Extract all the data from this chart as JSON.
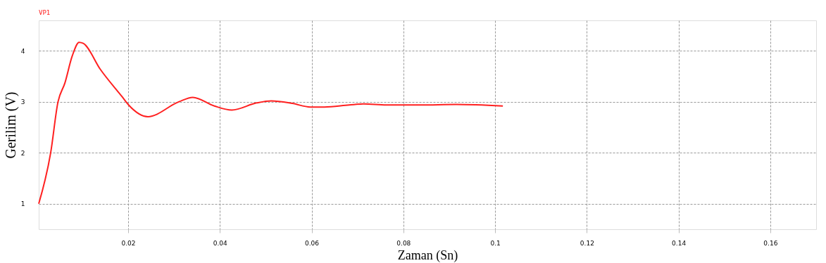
{
  "chart_data": {
    "type": "line",
    "xlabel": "Zaman (Sn)",
    "ylabel": "Gerilim (V)",
    "x": [
      0.0005,
      0.0031,
      0.0047,
      0.0062,
      0.0078,
      0.0093,
      0.0102,
      0.014,
      0.0186,
      0.0202,
      0.0243,
      0.031,
      0.0341,
      0.0388,
      0.0426,
      0.048,
      0.0512,
      0.0558,
      0.0597,
      0.0628,
      0.0682,
      0.0713,
      0.0763,
      0.0837,
      0.0915,
      0.1017
    ],
    "series": [
      {
        "name": "VP1",
        "color": "#ff2020",
        "values": [
          1.0,
          2.0,
          3.0,
          3.37,
          3.9,
          4.17,
          4.15,
          3.63,
          3.11,
          2.93,
          2.71,
          3.0,
          3.09,
          2.92,
          2.84,
          2.98,
          3.02,
          2.97,
          2.9,
          2.9,
          2.94,
          2.96,
          2.94,
          2.94,
          2.95,
          2.92
        ]
      }
    ],
    "xlim": [
      0.0005,
      0.17
    ],
    "xticks": [
      0.02,
      0.04,
      0.06,
      0.08,
      {
        "value": 0.1,
        "label": "0.1"
      },
      0.12,
      0.14,
      0.16
    ],
    "ylim": [
      0.5,
      4.6
    ],
    "yticks": [
      1,
      2,
      3,
      4
    ],
    "grid": true,
    "marker": "none",
    "line_style": "solid"
  }
}
